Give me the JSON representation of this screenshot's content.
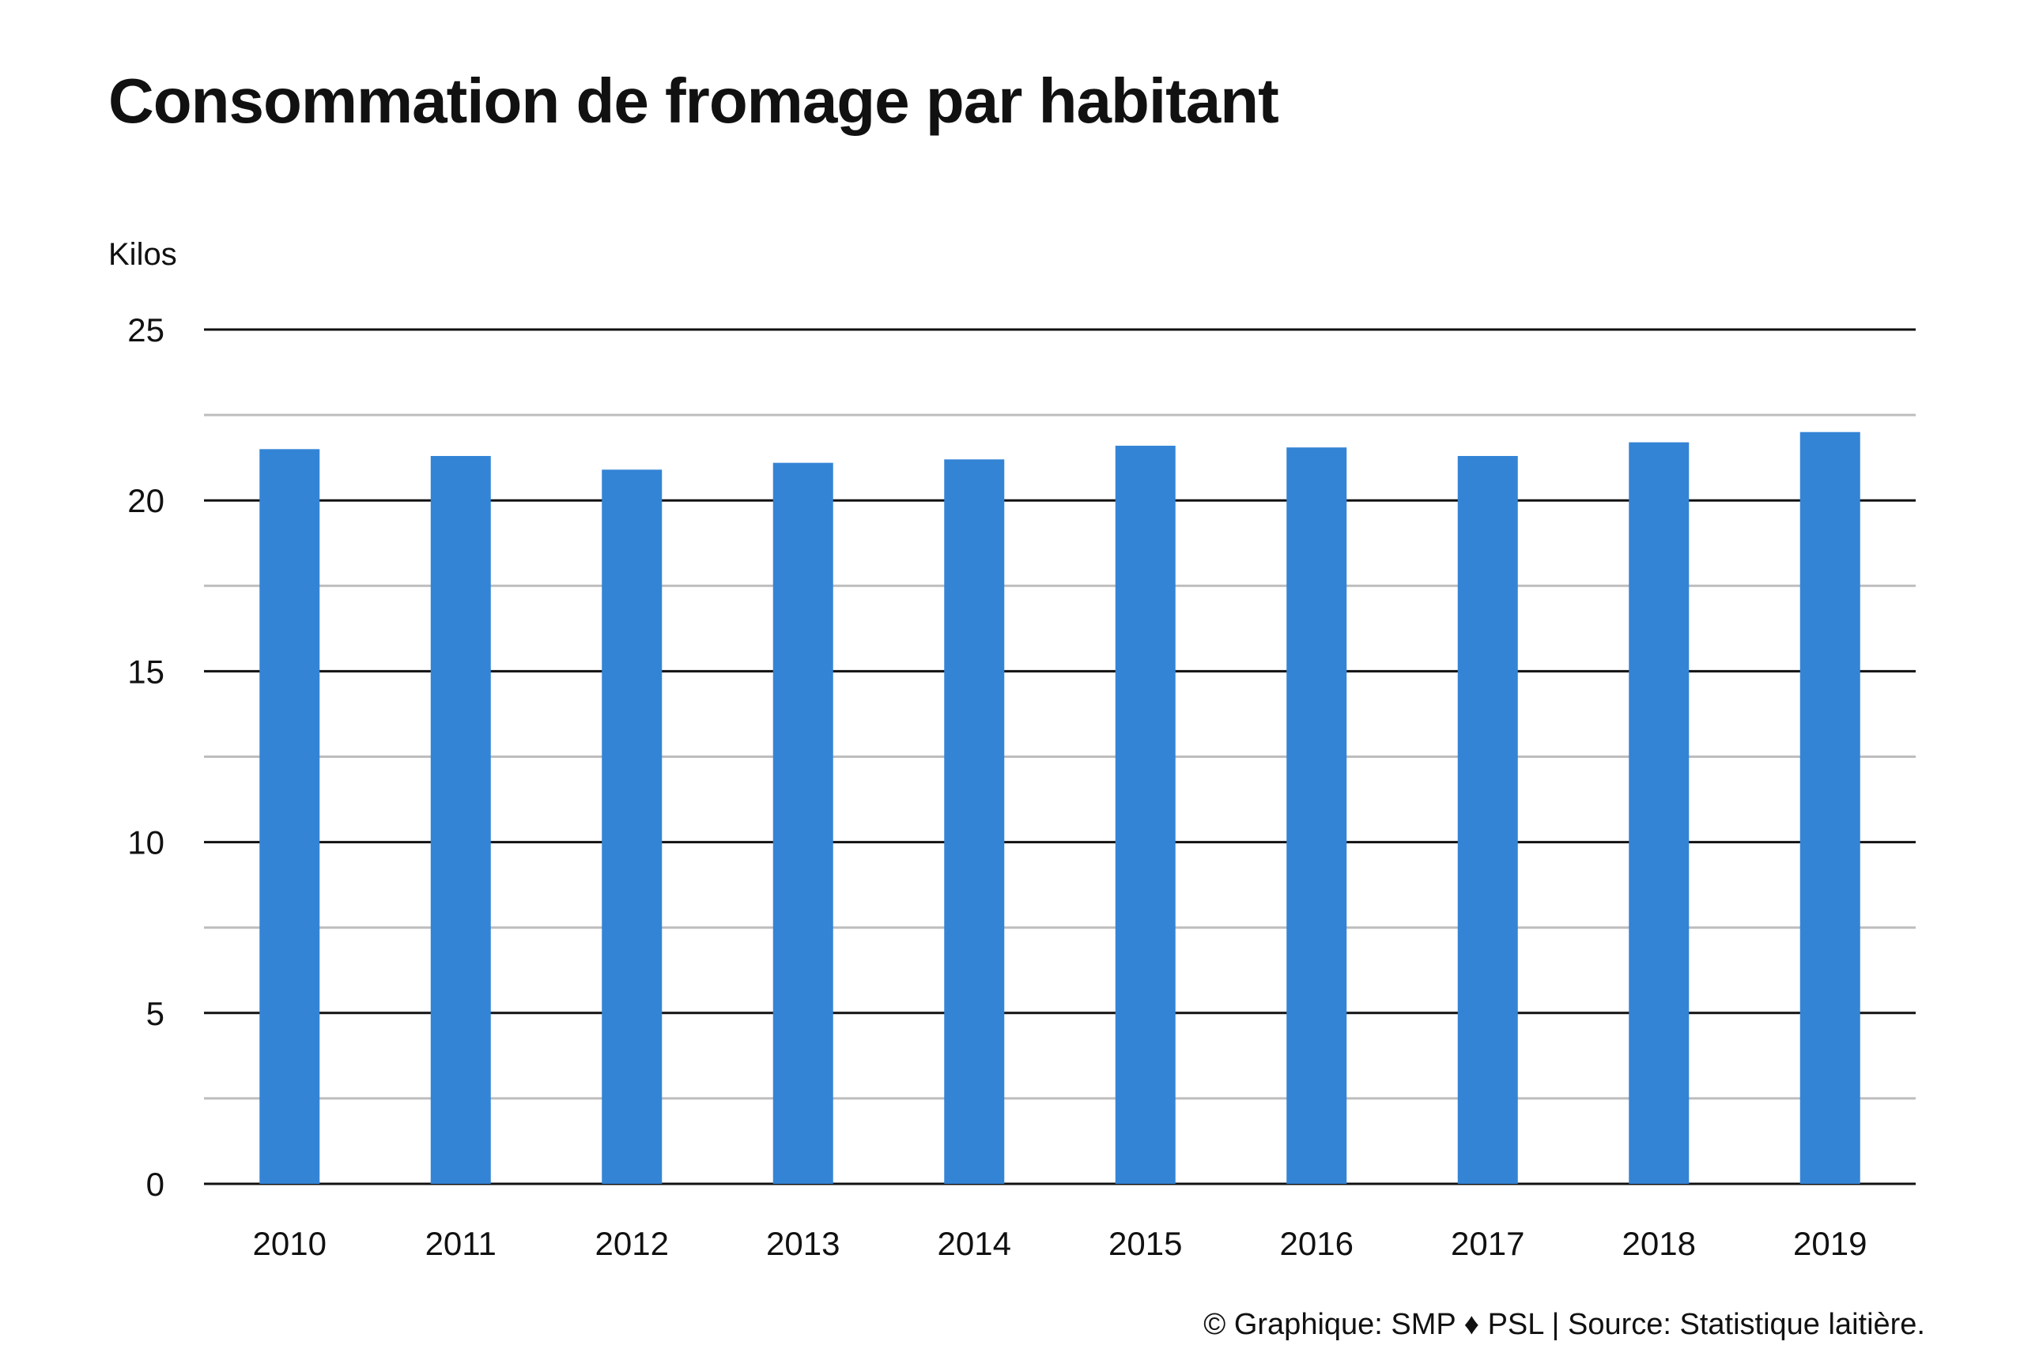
{
  "chart_data": {
    "type": "bar",
    "title": "Consommation de fromage par habitant",
    "ylabel": "Kilos",
    "xlabel": "",
    "categories": [
      "2010",
      "2011",
      "2012",
      "2013",
      "2014",
      "2015",
      "2016",
      "2017",
      "2018",
      "2019"
    ],
    "values": [
      21.5,
      21.3,
      20.9,
      21.1,
      21.2,
      21.6,
      21.55,
      21.3,
      21.7,
      22.0
    ],
    "ylim": [
      0,
      25
    ],
    "yticks": [
      "0",
      "5",
      "10",
      "15",
      "20",
      "25"
    ],
    "minor_gridlines": [
      2.5,
      7.5,
      12.5,
      17.5,
      22.5
    ],
    "grid": true,
    "legend": "none",
    "bar_color": "#3484D6"
  },
  "source": "© Graphique: SMP ♦ PSL | Source: Statistique laitière."
}
